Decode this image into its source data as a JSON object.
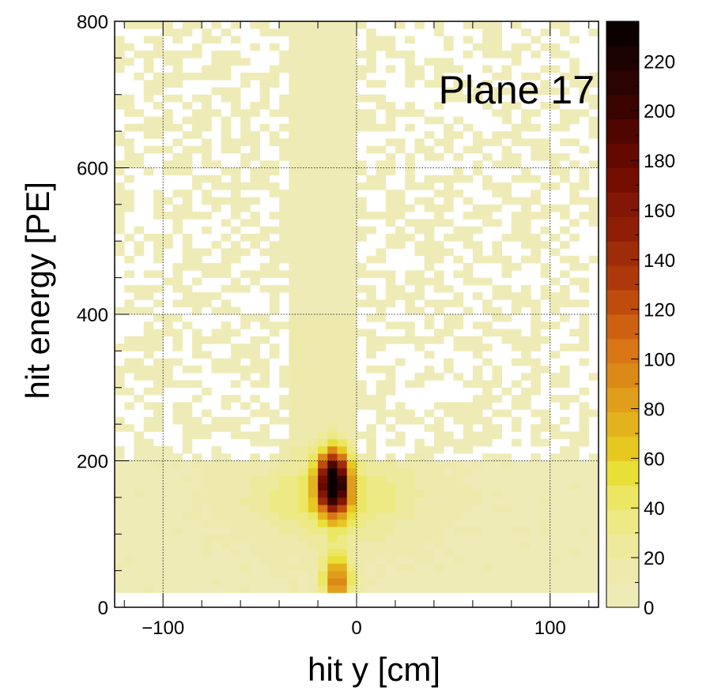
{
  "chart_data": {
    "type": "heatmap",
    "title": "",
    "annotation": "Plane 17",
    "xlabel": "hit y [cm]",
    "ylabel": "hit energy [PE]",
    "xlim": [
      -125,
      125
    ],
    "ylim": [
      0,
      800
    ],
    "xticks": [
      -100,
      0,
      100
    ],
    "xtick_labels": [
      "−100",
      "0",
      "100"
    ],
    "yticks": [
      0,
      200,
      400,
      600,
      800
    ],
    "ytick_labels": [
      "0",
      "200",
      "400",
      "600",
      "800"
    ],
    "grid": true,
    "colorbar": {
      "zlim": [
        0,
        236
      ],
      "ticks": [
        0,
        20,
        40,
        60,
        80,
        100,
        120,
        140,
        160,
        180,
        200,
        220
      ],
      "tick_labels": [
        "0",
        "20",
        "40",
        "60",
        "80",
        "100",
        "120",
        "140",
        "160",
        "180",
        "200",
        "220"
      ]
    },
    "bins": {
      "x_edges_range": [
        -125,
        125
      ],
      "y_edges_range": [
        0,
        800
      ],
      "nx": 50,
      "ny": 80
    },
    "regions": [
      {
        "x": [
          -125,
          125
        ],
        "y": [
          20,
          200
        ],
        "z": 6
      },
      {
        "x": [
          -125,
          125
        ],
        "y": [
          200,
          400
        ],
        "z": 3
      },
      {
        "x": [
          -125,
          125
        ],
        "y": [
          400,
          800
        ],
        "z": 2
      },
      {
        "x": [
          -35,
          0
        ],
        "y": [
          200,
          400
        ],
        "z": 10
      },
      {
        "x": [
          -35,
          0
        ],
        "y": [
          400,
          800
        ],
        "z": 5
      }
    ],
    "hotspots": [
      {
        "x": -12,
        "y": 170,
        "z": 236
      },
      {
        "x": -10,
        "y": 35,
        "z": 90
      }
    ],
    "colors": {
      "low": "#efeab7",
      "mid": "#e6d020",
      "orange": "#e08a1a",
      "dark": "#6e0a00",
      "max": "#050000",
      "grid": "#000000",
      "frame": "#000000"
    }
  }
}
